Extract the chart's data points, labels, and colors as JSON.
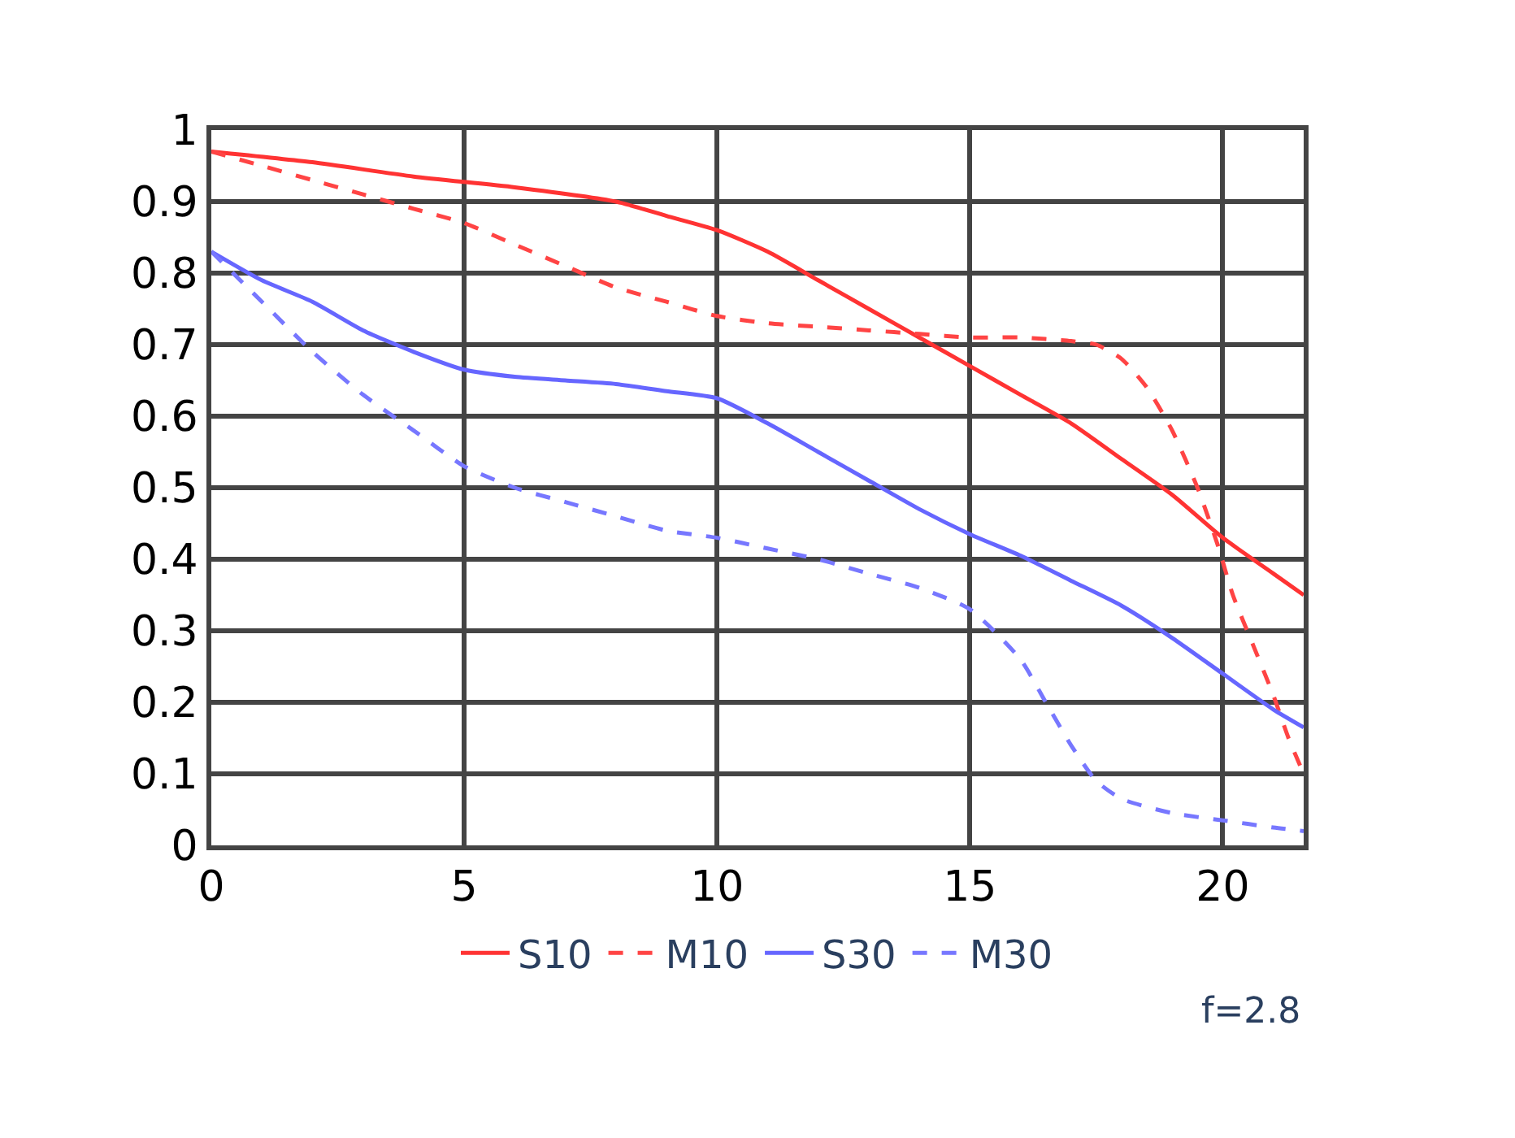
{
  "chart_data": {
    "type": "line",
    "xlim": [
      0,
      21.6
    ],
    "xticks": [
      0,
      5,
      10,
      15,
      20
    ],
    "ylim": [
      0,
      1
    ],
    "yticks": [
      0,
      0.1,
      0.2,
      0.3,
      0.4,
      0.5,
      0.6,
      0.7,
      0.8,
      0.9,
      1
    ],
    "grid": true,
    "legend": "bottom",
    "marker": "none",
    "annotations": [
      "f=2.8"
    ],
    "series": [
      {
        "name": "S10",
        "color": "#ff3333",
        "line_style": "solid",
        "x": [
          0,
          2,
          4,
          6,
          8,
          9,
          10,
          11,
          12,
          13,
          14,
          15,
          16,
          17,
          18,
          19,
          20,
          21,
          21.6
        ],
        "values": [
          0.97,
          0.955,
          0.935,
          0.92,
          0.9,
          0.88,
          0.86,
          0.83,
          0.79,
          0.75,
          0.71,
          0.67,
          0.63,
          0.59,
          0.54,
          0.49,
          0.43,
          0.38,
          0.35
        ]
      },
      {
        "name": "M10",
        "color": "#ff4444",
        "line_style": "dashed",
        "x": [
          0,
          1,
          2,
          3,
          4,
          5,
          6,
          7,
          8,
          9,
          10,
          11,
          12,
          13,
          14,
          15,
          16,
          17,
          17.5,
          18,
          18.5,
          19,
          19.5,
          19.9,
          20.2,
          20.6,
          21,
          21.3,
          21.6
        ],
        "values": [
          0.97,
          0.95,
          0.93,
          0.91,
          0.89,
          0.87,
          0.84,
          0.81,
          0.78,
          0.76,
          0.74,
          0.73,
          0.725,
          0.72,
          0.715,
          0.71,
          0.71,
          0.705,
          0.7,
          0.68,
          0.64,
          0.58,
          0.5,
          0.42,
          0.35,
          0.28,
          0.21,
          0.15,
          0.1
        ]
      },
      {
        "name": "S30",
        "color": "#6666ff",
        "line_style": "solid",
        "x": [
          0,
          1,
          2,
          3,
          4,
          5,
          6,
          7,
          8,
          9,
          10,
          11,
          12,
          13,
          14,
          15,
          16,
          17,
          18,
          19,
          20,
          21,
          21.6
        ],
        "values": [
          0.83,
          0.79,
          0.76,
          0.72,
          0.69,
          0.665,
          0.655,
          0.65,
          0.645,
          0.635,
          0.625,
          0.59,
          0.55,
          0.51,
          0.47,
          0.435,
          0.405,
          0.37,
          0.335,
          0.29,
          0.24,
          0.19,
          0.165
        ]
      },
      {
        "name": "M30",
        "color": "#7777ff",
        "line_style": "dashed",
        "x": [
          0,
          1,
          2,
          3,
          4,
          5,
          6,
          7,
          8,
          9,
          10,
          11,
          12,
          13,
          14,
          15,
          16,
          16.5,
          17,
          17.5,
          18,
          19,
          20,
          21,
          21.6
        ],
        "values": [
          0.83,
          0.76,
          0.69,
          0.63,
          0.58,
          0.53,
          0.5,
          0.48,
          0.46,
          0.44,
          0.43,
          0.415,
          0.4,
          0.38,
          0.36,
          0.33,
          0.26,
          0.2,
          0.14,
          0.09,
          0.065,
          0.045,
          0.035,
          0.025,
          0.02
        ]
      }
    ]
  }
}
